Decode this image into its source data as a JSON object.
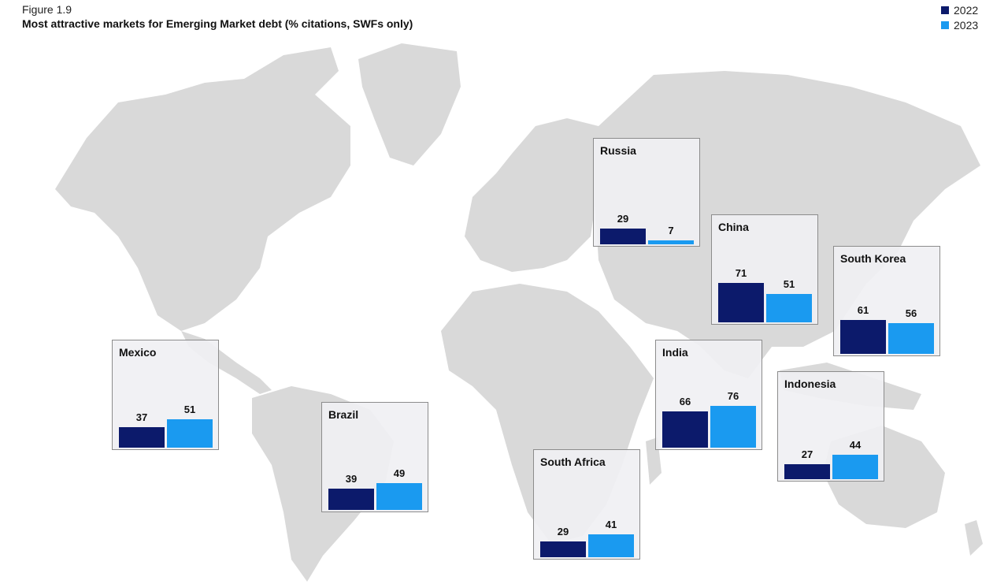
{
  "figure_label": "Figure 1.9",
  "title": "Most attractive markets for Emerging Market debt (% citations, SWFs only)",
  "colors": {
    "2022": "#0c1a6b",
    "2023": "#1a9af0",
    "land": "#d9d9d9"
  },
  "legend": [
    {
      "label": "2022",
      "color": "#0c1a6b"
    },
    {
      "label": "2023",
      "color": "#1a9af0"
    }
  ],
  "chart_data": {
    "type": "bar",
    "title": "Most attractive markets for Emerging Market debt (% citations, SWFs only)",
    "series_names": [
      "2022",
      "2023"
    ],
    "markets": [
      {
        "name": "Russia",
        "values": [
          29,
          7
        ]
      },
      {
        "name": "China",
        "values": [
          71,
          51
        ]
      },
      {
        "name": "South Korea",
        "values": [
          61,
          56
        ]
      },
      {
        "name": "Mexico",
        "values": [
          37,
          51
        ]
      },
      {
        "name": "India",
        "values": [
          66,
          76
        ]
      },
      {
        "name": "Indonesia",
        "values": [
          27,
          44
        ]
      },
      {
        "name": "Brazil",
        "values": [
          39,
          49
        ]
      },
      {
        "name": "South Africa",
        "values": [
          29,
          41
        ]
      }
    ]
  }
}
